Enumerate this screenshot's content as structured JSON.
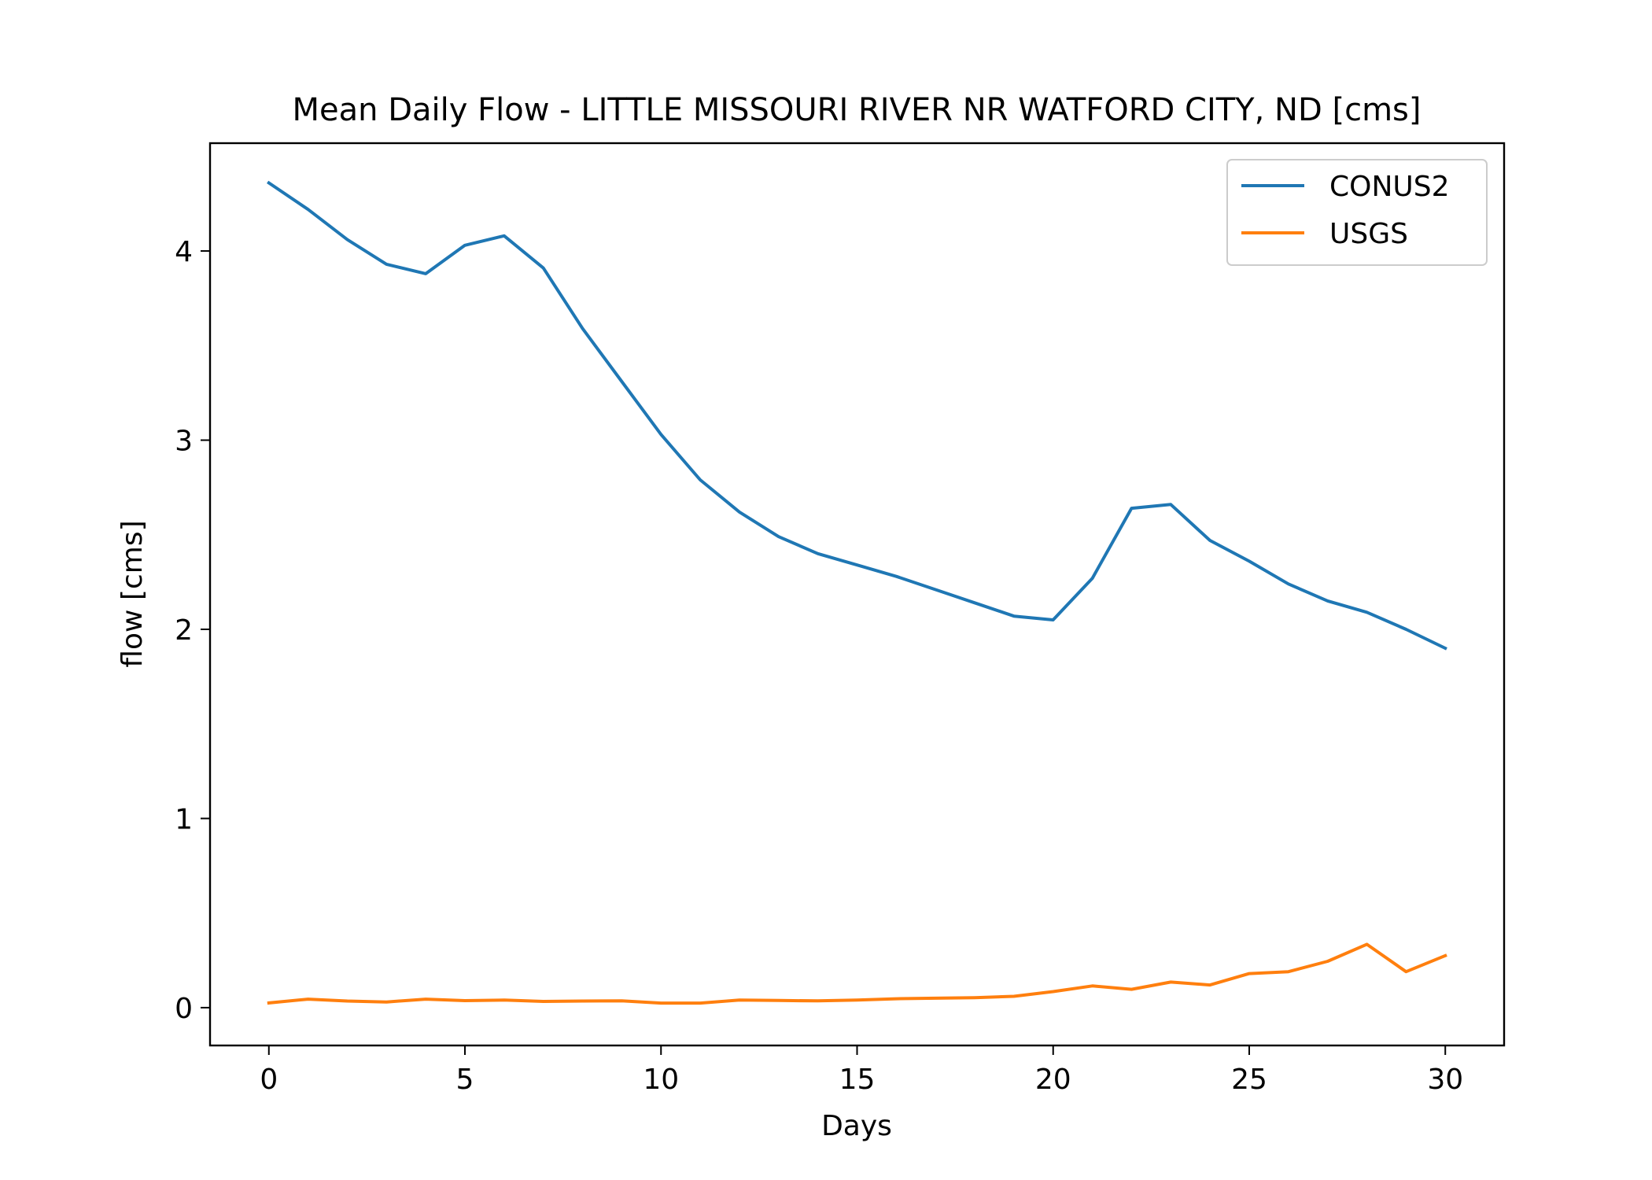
{
  "chart_data": {
    "type": "line",
    "title": "Mean Daily Flow - LITTLE MISSOURI RIVER NR WATFORD CITY, ND [cms]",
    "xlabel": "Days",
    "ylabel": "flow [cms]",
    "xlim": [
      -1.5,
      31.5
    ],
    "ylim": [
      -0.2,
      4.57
    ],
    "xticks": [
      0,
      5,
      10,
      15,
      20,
      25,
      30
    ],
    "yticks": [
      0,
      1,
      2,
      3,
      4
    ],
    "grid": false,
    "legend_position": "top-right",
    "x": [
      0,
      1,
      2,
      3,
      4,
      5,
      6,
      7,
      8,
      9,
      10,
      11,
      12,
      13,
      14,
      15,
      16,
      17,
      18,
      19,
      20,
      21,
      22,
      23,
      24,
      25,
      26,
      27,
      28,
      29,
      30
    ],
    "series": [
      {
        "name": "CONUS2",
        "color": "#1f77b4",
        "values": [
          4.36,
          4.22,
          4.06,
          3.93,
          3.88,
          4.03,
          4.08,
          3.91,
          3.59,
          3.31,
          3.03,
          2.79,
          2.62,
          2.49,
          2.4,
          2.34,
          2.28,
          2.21,
          2.14,
          2.07,
          2.05,
          2.27,
          2.64,
          2.66,
          2.47,
          2.36,
          2.24,
          2.15,
          2.09,
          2.0,
          1.9
        ]
      },
      {
        "name": "USGS",
        "color": "#ff7f0e",
        "values": [
          0.025,
          0.045,
          0.035,
          0.03,
          0.045,
          0.037,
          0.04,
          0.033,
          0.035,
          0.036,
          0.024,
          0.024,
          0.04,
          0.038,
          0.036,
          0.04,
          0.047,
          0.05,
          0.053,
          0.06,
          0.085,
          0.115,
          0.097,
          0.135,
          0.12,
          0.18,
          0.19,
          0.245,
          0.335,
          0.19,
          0.275
        ]
      }
    ]
  }
}
